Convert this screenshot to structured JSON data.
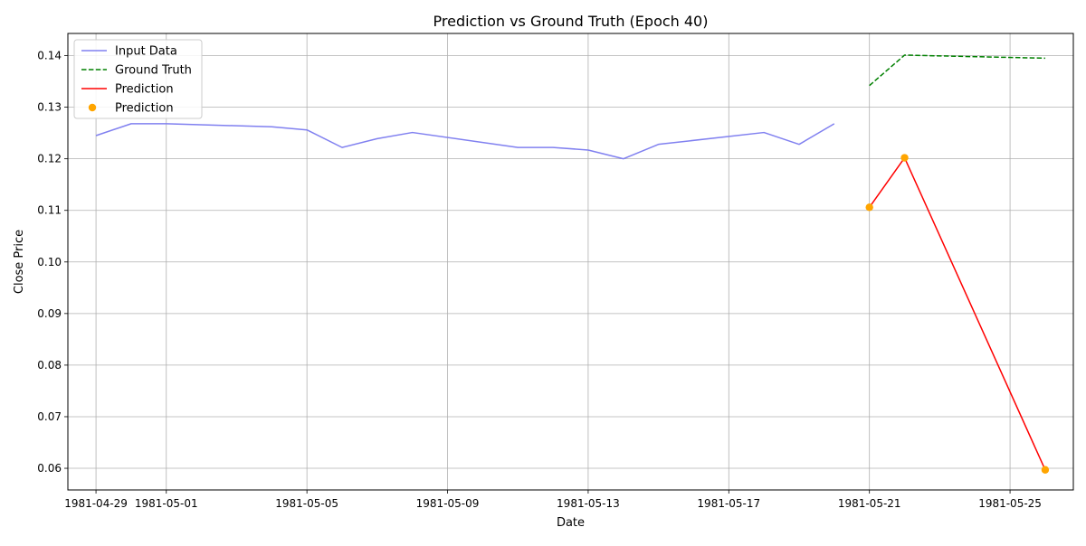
{
  "chart_data": {
    "type": "line",
    "title": "Prediction vs Ground Truth (Epoch 40)",
    "xlabel": "Date",
    "ylabel": "Close Price",
    "x_range": [
      "1981-04-28",
      "1981-05-27"
    ],
    "ylim": [
      0.0558,
      0.1443
    ],
    "grid": true,
    "legend_position": "top-left",
    "x_ticks": [
      "1981-04-29",
      "1981-05-01",
      "1981-05-05",
      "1981-05-09",
      "1981-05-13",
      "1981-05-17",
      "1981-05-21",
      "1981-05-25"
    ],
    "y_ticks": [
      0.06,
      0.07,
      0.08,
      0.09,
      0.1,
      0.11,
      0.12,
      0.13,
      0.14
    ],
    "y_tick_labels": [
      "0.06",
      "0.07",
      "0.08",
      "0.09",
      "0.10",
      "0.11",
      "0.12",
      "0.13",
      "0.14"
    ],
    "series": [
      {
        "name": "Input Data",
        "kind": "line",
        "style": "solid",
        "color": "#8080f0",
        "points": [
          {
            "x": "1981-04-29",
            "y": 0.1245
          },
          {
            "x": "1981-04-30",
            "y": 0.1268
          },
          {
            "x": "1981-05-01",
            "y": 0.1268
          },
          {
            "x": "1981-05-04",
            "y": 0.1262
          },
          {
            "x": "1981-05-05",
            "y": 0.1256
          },
          {
            "x": "1981-05-06",
            "y": 0.1222
          },
          {
            "x": "1981-05-07",
            "y": 0.1239
          },
          {
            "x": "1981-05-08",
            "y": 0.1251
          },
          {
            "x": "1981-05-11",
            "y": 0.1222
          },
          {
            "x": "1981-05-12",
            "y": 0.1222
          },
          {
            "x": "1981-05-13",
            "y": 0.1217
          },
          {
            "x": "1981-05-14",
            "y": 0.12
          },
          {
            "x": "1981-05-15",
            "y": 0.1228
          },
          {
            "x": "1981-05-18",
            "y": 0.1251
          },
          {
            "x": "1981-05-19",
            "y": 0.1228
          },
          {
            "x": "1981-05-20",
            "y": 0.1268
          }
        ]
      },
      {
        "name": "Ground Truth",
        "kind": "line",
        "style": "dashed",
        "color": "#008000",
        "points": [
          {
            "x": "1981-05-21",
            "y": 0.1342
          },
          {
            "x": "1981-05-22",
            "y": 0.1401
          },
          {
            "x": "1981-05-26",
            "y": 0.1395
          }
        ]
      },
      {
        "name": "Prediction",
        "kind": "line",
        "style": "solid",
        "color": "#ff0000",
        "points": [
          {
            "x": "1981-05-21",
            "y": 0.1106
          },
          {
            "x": "1981-05-22",
            "y": 0.1202
          },
          {
            "x": "1981-05-26",
            "y": 0.0597
          }
        ]
      },
      {
        "name": "Prediction",
        "kind": "scatter",
        "color": "#ffa500",
        "points": [
          {
            "x": "1981-05-21",
            "y": 0.1106
          },
          {
            "x": "1981-05-22",
            "y": 0.1202
          },
          {
            "x": "1981-05-26",
            "y": 0.0597
          }
        ]
      }
    ]
  }
}
